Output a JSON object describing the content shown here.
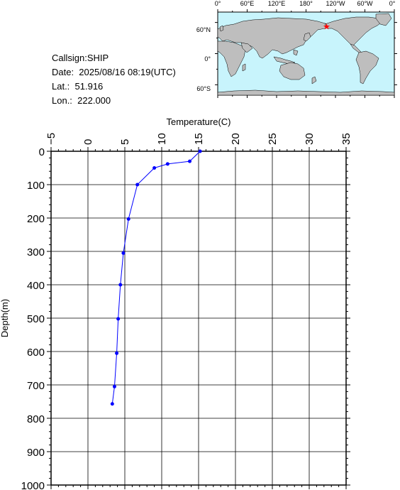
{
  "station": {
    "callsign": "Callsign:SHIP",
    "date": "Date:  2025/08/16 08:19(UTC)",
    "lat": "Lat.:  51.916",
    "lon": "Lon.:  222.000"
  },
  "map": {
    "lon_labels": [
      "0°",
      "60°E",
      "120°E",
      "180°",
      "120°W",
      "60°W",
      "0°"
    ],
    "lat_labels": [
      "60°N",
      "0°",
      "60°S"
    ],
    "ocean_color": "#c8f4fc",
    "land_color": "#bebebe",
    "marker": {
      "lon": 222.0,
      "lat": 51.916,
      "color": "#ff0000",
      "icon": "star-icon"
    }
  },
  "chart_data": {
    "type": "line",
    "title": "",
    "xlabel": "Temperature(C)",
    "ylabel": "Depth(m)",
    "xlim": [
      -5,
      35
    ],
    "ylim": [
      0,
      1000
    ],
    "y_inverted": true,
    "x_axis_position": "top",
    "grid": true,
    "x_ticks": [
      -5,
      0,
      5,
      10,
      15,
      20,
      25,
      30,
      35
    ],
    "x_tick_labels": [
      "−5",
      "0",
      "5",
      "10",
      "15",
      "20",
      "25",
      "30",
      "35"
    ],
    "y_ticks": [
      0,
      100,
      200,
      300,
      400,
      500,
      600,
      700,
      800,
      900,
      1000
    ],
    "y_tick_labels": [
      "0",
      "100",
      "200",
      "300",
      "400",
      "500",
      "600",
      "700",
      "800",
      "900",
      "1000"
    ],
    "series": [
      {
        "color": "#0000ff",
        "points": [
          {
            "temp": 15.2,
            "depth": 0
          },
          {
            "temp": 13.8,
            "depth": 30
          },
          {
            "temp": 10.8,
            "depth": 38
          },
          {
            "temp": 9.0,
            "depth": 50
          },
          {
            "temp": 6.7,
            "depth": 100
          },
          {
            "temp": 5.5,
            "depth": 203
          },
          {
            "temp": 4.8,
            "depth": 305
          },
          {
            "temp": 4.4,
            "depth": 400
          },
          {
            "temp": 4.1,
            "depth": 502
          },
          {
            "temp": 3.9,
            "depth": 605
          },
          {
            "temp": 3.6,
            "depth": 705
          },
          {
            "temp": 3.3,
            "depth": 757
          }
        ]
      }
    ]
  }
}
